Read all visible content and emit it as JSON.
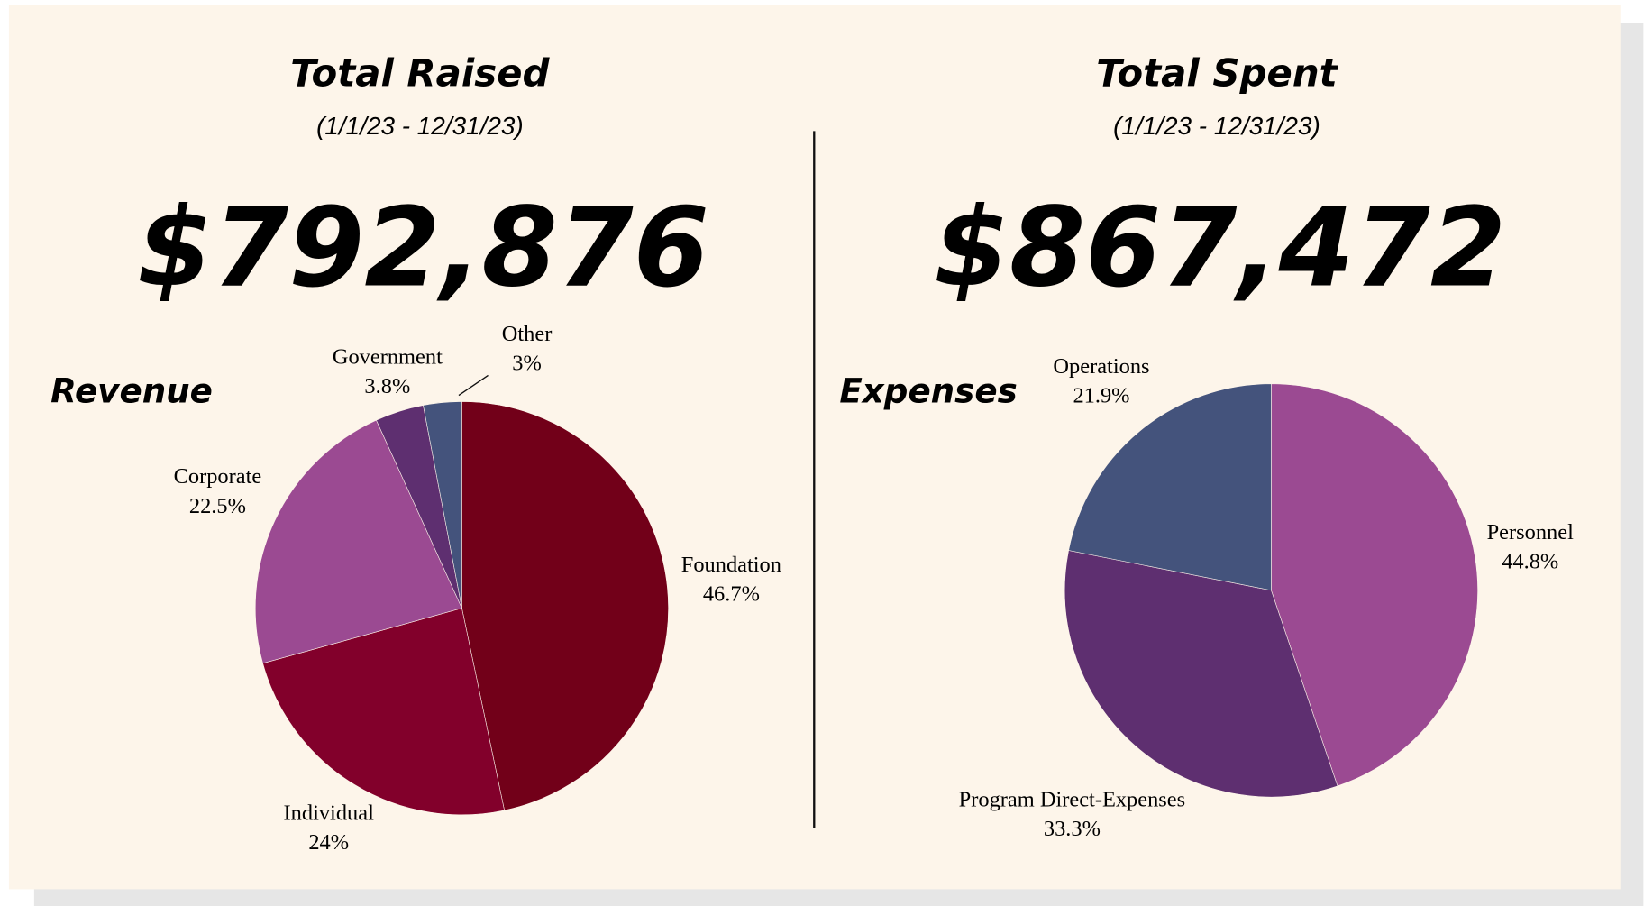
{
  "chart_data": [
    {
      "type": "pie",
      "title": "Total Raised",
      "subtitle": "(1/1/23 - 12/31/23)",
      "total": "$792,876",
      "label": "Revenue",
      "categories": [
        "Foundation",
        "Individual",
        "Corporate",
        "Government",
        "Other"
      ],
      "values": [
        46.7,
        24,
        22.5,
        3.8,
        3
      ],
      "value_labels": [
        "46.7%",
        "24%",
        "22.5%",
        "3.8%",
        "3%"
      ],
      "colors": [
        "#720019",
        "#82002b",
        "#9b4a92",
        "#5e2f70",
        "#44537c"
      ]
    },
    {
      "type": "pie",
      "title": "Total Spent",
      "subtitle": "(1/1/23 - 12/31/23)",
      "total": "$867,472",
      "label": "Expenses",
      "categories": [
        "Personnel",
        "Program Direct-Expenses",
        "Operations"
      ],
      "values": [
        44.8,
        33.3,
        21.9
      ],
      "value_labels": [
        "44.8%",
        "33.3%",
        "21.9%"
      ],
      "colors": [
        "#9b4a92",
        "#5e2f70",
        "#44537c"
      ]
    }
  ]
}
